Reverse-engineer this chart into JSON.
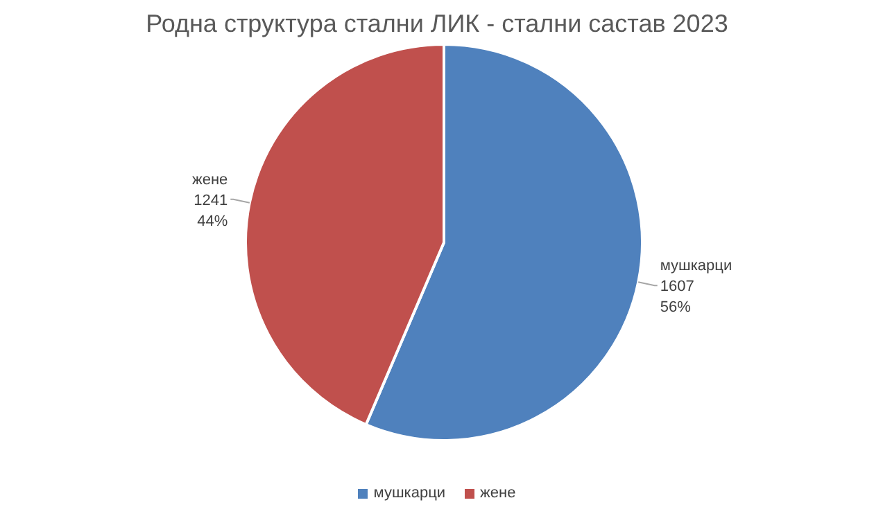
{
  "chart_data": {
    "type": "pie",
    "title": "Родна структура стални ЛИК - стални састав 2023",
    "categories": [
      "мушкарци",
      "жене"
    ],
    "values": [
      1607,
      1241
    ],
    "colors": [
      "#4f81bd",
      "#c0504d"
    ],
    "value_labels": [
      "1607\n56%",
      "1241\n44%"
    ],
    "legend": "bottom"
  }
}
